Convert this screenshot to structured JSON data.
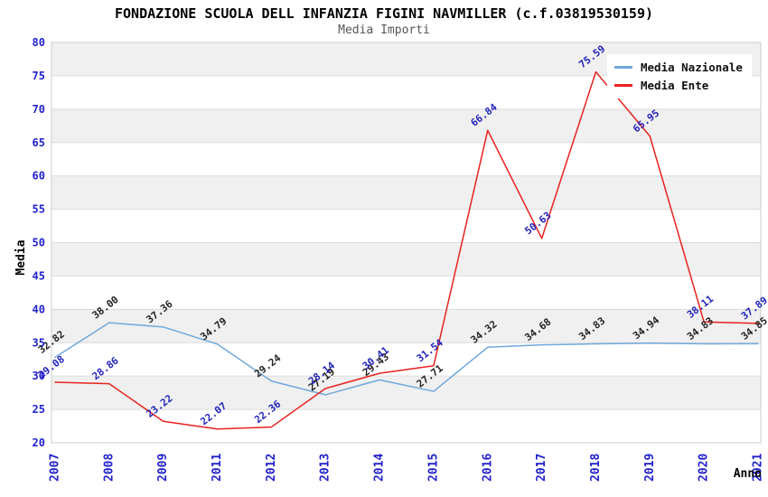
{
  "header": {
    "title": "FONDAZIONE SCUOLA DELL INFANZIA FIGINI NAVMILLER (c.f.03819530159)",
    "subtitle": "Media Importi"
  },
  "chart_data": {
    "type": "line",
    "title": "FONDAZIONE SCUOLA DELL INFANZIA FIGINI NAVMILLER (c.f.03819530159)",
    "subtitle": "Media Importi",
    "categories": [
      "2007",
      "2008",
      "2009",
      "2011",
      "2012",
      "2013",
      "2014",
      "2015",
      "2016",
      "2017",
      "2018",
      "2019",
      "2020",
      "2021"
    ],
    "series": [
      {
        "name": "Media Nazionale",
        "color": "#6FA8DC",
        "label_color": "#222222",
        "values": [
          32.82,
          38.0,
          37.36,
          34.79,
          29.24,
          27.19,
          29.43,
          27.71,
          34.32,
          34.68,
          34.83,
          34.94,
          34.83,
          34.85
        ]
      },
      {
        "name": "Media Ente",
        "color": "#E8221E",
        "label_color": "#2323BB",
        "values": [
          29.08,
          28.86,
          23.22,
          22.07,
          22.36,
          28.14,
          30.41,
          31.54,
          66.84,
          50.63,
          75.59,
          65.95,
          38.11,
          37.89
        ]
      }
    ],
    "xlabel": "Anno",
    "ylabel": "Media",
    "ylim": [
      20,
      80
    ],
    "yticks": [
      20,
      25,
      30,
      35,
      40,
      45,
      50,
      55,
      60,
      65,
      70,
      75,
      80
    ],
    "grid": "horizontal-bands-alternating",
    "legend_position": "top-right",
    "colors": {
      "tick_label": "#2222CC",
      "band": "#F0F0F0",
      "gridline": "#DCDCDC",
      "plot_border": "#CCCCCC",
      "axis_title": "#000000"
    }
  }
}
